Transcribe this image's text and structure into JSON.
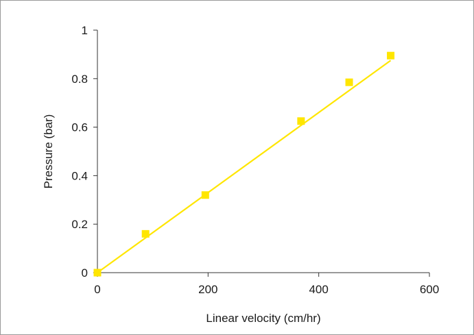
{
  "chart_data": {
    "type": "scatter",
    "title": "",
    "xlabel": "Linear velocity (cm/hr)",
    "ylabel": "Pressure (bar)",
    "xlim": [
      0,
      600
    ],
    "ylim": [
      0,
      1
    ],
    "x_ticks": [
      0,
      200,
      400,
      600
    ],
    "y_ticks": [
      0,
      0.2,
      0.4,
      0.6,
      0.8,
      1
    ],
    "x_tick_labels": [
      "0",
      "200",
      "400",
      "600"
    ],
    "y_tick_labels": [
      "0",
      "0.2",
      "0.4",
      "0.6",
      "0.8",
      "1"
    ],
    "grid": false,
    "legend": "none",
    "series": [
      {
        "marker": "square",
        "color": "#ffe600",
        "x": [
          0,
          87,
          195,
          368,
          455,
          530
        ],
        "y": [
          0,
          0.16,
          0.32,
          0.625,
          0.785,
          0.895
        ]
      }
    ],
    "trendline": {
      "type": "linear",
      "color": "#ffe600",
      "x": [
        0,
        530
      ],
      "y": [
        0,
        0.875
      ]
    }
  }
}
